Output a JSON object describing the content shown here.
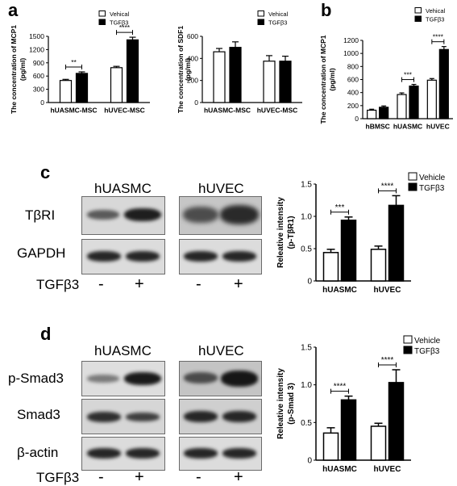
{
  "panel_letters": {
    "a": "a",
    "b": "b",
    "c": "c",
    "d": "d"
  },
  "colors": {
    "vehicle": "#ffffff",
    "tgf": "#000000",
    "axis": "#000000"
  },
  "blots": {
    "c": {
      "col_titles": [
        "hUASMC",
        "hUVEC"
      ],
      "row_labels": [
        "TβRI",
        "GAPDH"
      ],
      "treatment_label": "TGFβ3",
      "treatment_signs": [
        "-",
        "+",
        "-",
        "+"
      ]
    },
    "d": {
      "col_titles": [
        "hUASMC",
        "hUVEC"
      ],
      "row_labels": [
        "p-Smad3",
        "Smad3",
        "β-actin"
      ],
      "treatment_label": "TGFβ3",
      "treatment_signs": [
        "-",
        "+",
        "-",
        "+"
      ]
    }
  },
  "chart_data": [
    {
      "id": "a1",
      "type": "bar",
      "ylabel": "The concentration of MCP1 (pg/ml)",
      "categories": [
        "hUASMC-MSC",
        "hUVEC-MSC"
      ],
      "series": [
        {
          "name": "Vehical",
          "values": [
            500,
            790
          ],
          "errors": [
            25,
            30
          ]
        },
        {
          "name": "TGFβ3",
          "values": [
            660,
            1420
          ],
          "errors": [
            35,
            60
          ]
        }
      ],
      "ylim": [
        0,
        1500
      ],
      "yticks": [
        "0",
        "300",
        "600",
        "900",
        "1200",
        "1500"
      ],
      "significance": [
        "**",
        "****"
      ],
      "legend": "top-right"
    },
    {
      "id": "a2",
      "type": "bar",
      "ylabel": "The concentration of SDF1 (pg/ml)",
      "categories": [
        "hUASMC-MSC",
        "hUVEC-MSC"
      ],
      "series": [
        {
          "name": "Vehical",
          "values": [
            460,
            375
          ],
          "errors": [
            30,
            50
          ]
        },
        {
          "name": "TGFβ3",
          "values": [
            500,
            375
          ],
          "errors": [
            50,
            45
          ]
        }
      ],
      "ylim": [
        0,
        600
      ],
      "yticks": [
        "0",
        "200",
        "400",
        "600"
      ],
      "significance": [
        "",
        ""
      ],
      "legend": "top-right"
    },
    {
      "id": "b",
      "type": "bar",
      "ylabel": "The concentration of MCP1 (pg/ml)",
      "categories": [
        "hBMSC",
        "hUASMC",
        "hUVEC"
      ],
      "series": [
        {
          "name": "Vehical",
          "values": [
            130,
            370,
            590
          ],
          "errors": [
            15,
            25,
            25
          ]
        },
        {
          "name": "TGFβ3",
          "values": [
            175,
            500,
            1060
          ],
          "errors": [
            20,
            25,
            45
          ]
        }
      ],
      "ylim": [
        0,
        1200
      ],
      "yticks": [
        "0",
        "200",
        "400",
        "600",
        "800",
        "1000",
        "1200"
      ],
      "significance": [
        "",
        "***",
        "****"
      ],
      "legend": "top-right"
    },
    {
      "id": "c",
      "type": "bar",
      "ylabel": "Releative intensity (p-TβR1)",
      "categories": [
        "hUASMC",
        "hUVEC"
      ],
      "series": [
        {
          "name": "Vehicle",
          "values": [
            0.44,
            0.49
          ],
          "errors": [
            0.05,
            0.05
          ]
        },
        {
          "name": "TGFβ3",
          "values": [
            0.94,
            1.17
          ],
          "errors": [
            0.05,
            0.15
          ]
        }
      ],
      "ylim": [
        0,
        1.5
      ],
      "yticks": [
        "0",
        "0.5",
        "1.0",
        "1.5"
      ],
      "significance": [
        "***",
        "****"
      ],
      "legend": "top-right"
    },
    {
      "id": "d",
      "type": "bar",
      "ylabel": "Releative intensity (p-Smad 3)",
      "categories": [
        "hUASMC",
        "hUVEC"
      ],
      "series": [
        {
          "name": "Vehicle",
          "values": [
            0.36,
            0.45
          ],
          "errors": [
            0.07,
            0.04
          ]
        },
        {
          "name": "TGFβ3",
          "values": [
            0.8,
            1.03
          ],
          "errors": [
            0.05,
            0.17
          ]
        }
      ],
      "ylim": [
        0,
        1.5
      ],
      "yticks": [
        "0",
        "0.5",
        "1.0",
        "1.5"
      ],
      "significance": [
        "****",
        "****"
      ],
      "legend": "top-right"
    }
  ]
}
